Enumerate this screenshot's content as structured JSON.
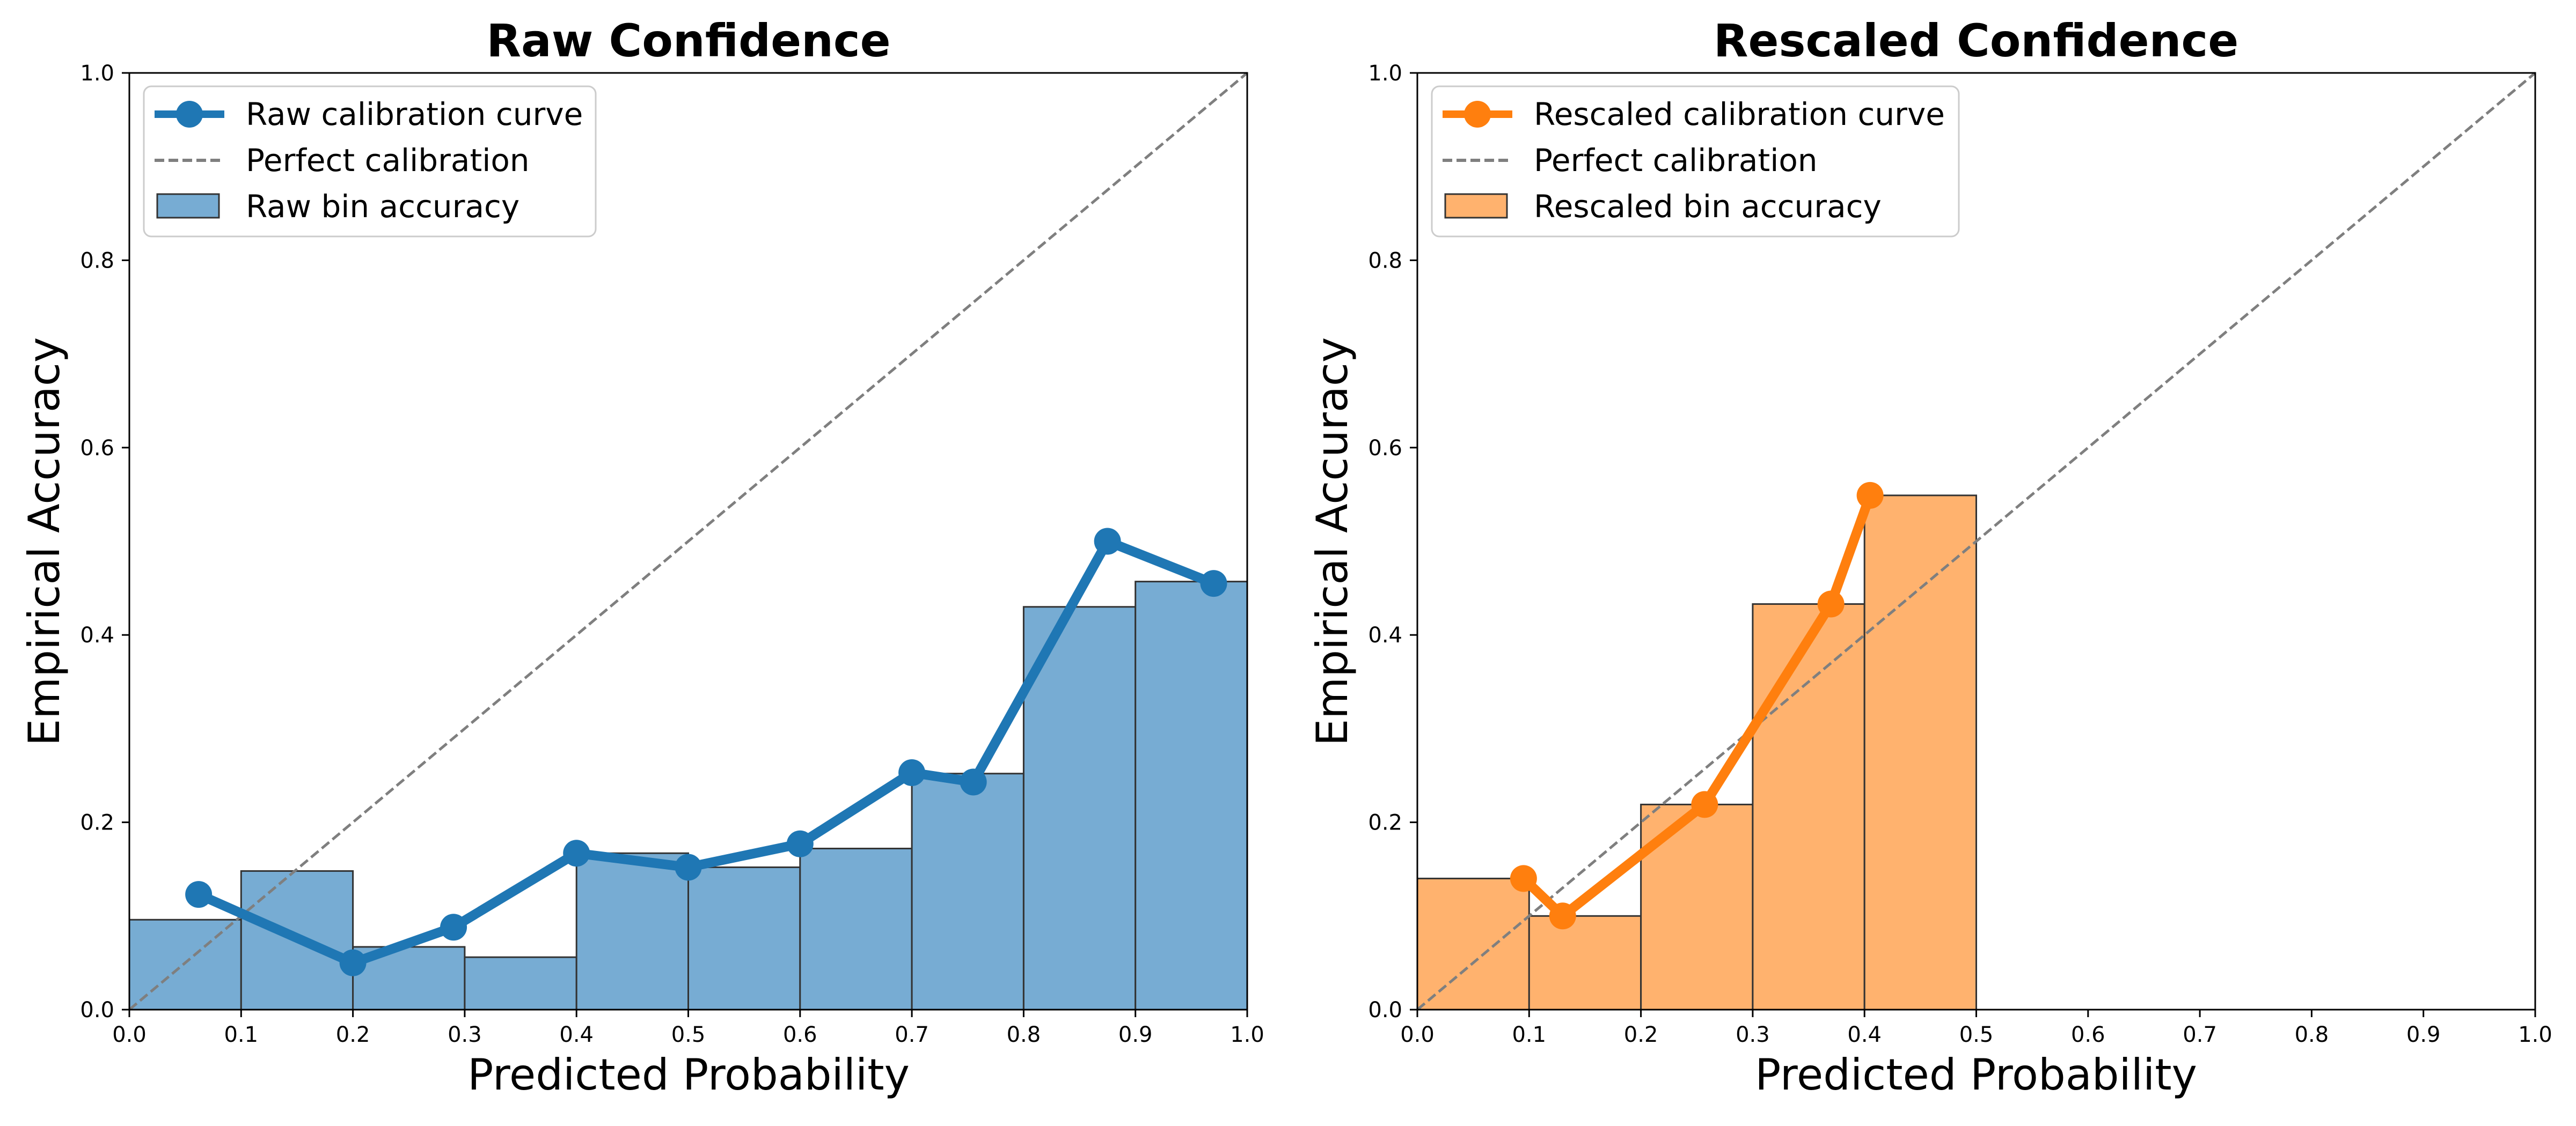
{
  "colors": {
    "raw_line": "#1f77b4",
    "raw_bar": "#77acd3",
    "rescaled_line": "#ff7f0e",
    "rescaled_bar": "#ffb26e",
    "diagonal": "#7f7f7f",
    "bar_edge": "#333333"
  },
  "chart_data": [
    {
      "id": "raw",
      "type": "bar",
      "title": "Raw Confidence",
      "xlabel": "Predicted Probability",
      "ylabel": "Empirical Accuracy",
      "xlim": [
        0,
        1
      ],
      "ylim": [
        0,
        1
      ],
      "xticks": [
        "0.0",
        "0.1",
        "0.2",
        "0.3",
        "0.4",
        "0.5",
        "0.6",
        "0.7",
        "0.8",
        "0.9",
        "1.0"
      ],
      "yticks": [
        "0.0",
        "0.2",
        "0.4",
        "0.6",
        "0.8",
        "1.0"
      ],
      "legend_position": "upper-left",
      "legend": {
        "curve": "Raw calibration curve",
        "diagonal": "Perfect calibration",
        "bars": "Raw bin accuracy"
      },
      "bins": {
        "edges": [
          0.0,
          0.1,
          0.2,
          0.3,
          0.4,
          0.5,
          0.6,
          0.7,
          0.8,
          0.9,
          1.0
        ],
        "accuracy": [
          0.096,
          0.148,
          0.067,
          0.056,
          0.167,
          0.152,
          0.172,
          0.252,
          0.43,
          0.457
        ]
      },
      "curve": {
        "x": [
          0.062,
          0.2,
          0.29,
          0.4,
          0.5,
          0.6,
          0.7,
          0.755,
          0.875,
          0.97
        ],
        "y": [
          0.123,
          0.05,
          0.088,
          0.167,
          0.152,
          0.177,
          0.253,
          0.243,
          0.5,
          0.455
        ]
      },
      "diagonal": {
        "x": [
          0,
          1
        ],
        "y": [
          0,
          1
        ]
      }
    },
    {
      "id": "rescaled",
      "type": "bar",
      "title": "Rescaled Confidence",
      "xlabel": "Predicted Probability",
      "ylabel": "Empirical Accuracy",
      "xlim": [
        0,
        1
      ],
      "ylim": [
        0,
        1
      ],
      "xticks": [
        "0.0",
        "0.1",
        "0.2",
        "0.3",
        "0.4",
        "0.5",
        "0.6",
        "0.7",
        "0.8",
        "0.9",
        "1.0"
      ],
      "yticks": [
        "0.0",
        "0.2",
        "0.4",
        "0.6",
        "0.8",
        "1.0"
      ],
      "legend_position": "upper-left",
      "legend": {
        "curve": "Rescaled calibration curve",
        "diagonal": "Perfect calibration",
        "bars": "Rescaled bin accuracy"
      },
      "bins": {
        "edges": [
          0.0,
          0.1,
          0.2,
          0.3,
          0.4,
          0.5
        ],
        "accuracy": [
          0.14,
          0.1,
          0.219,
          0.433,
          0.549
        ]
      },
      "curve": {
        "x": [
          0.095,
          0.13,
          0.257,
          0.37,
          0.405
        ],
        "y": [
          0.14,
          0.1,
          0.219,
          0.433,
          0.549
        ]
      },
      "diagonal": {
        "x": [
          0,
          1
        ],
        "y": [
          0,
          1
        ]
      }
    }
  ]
}
